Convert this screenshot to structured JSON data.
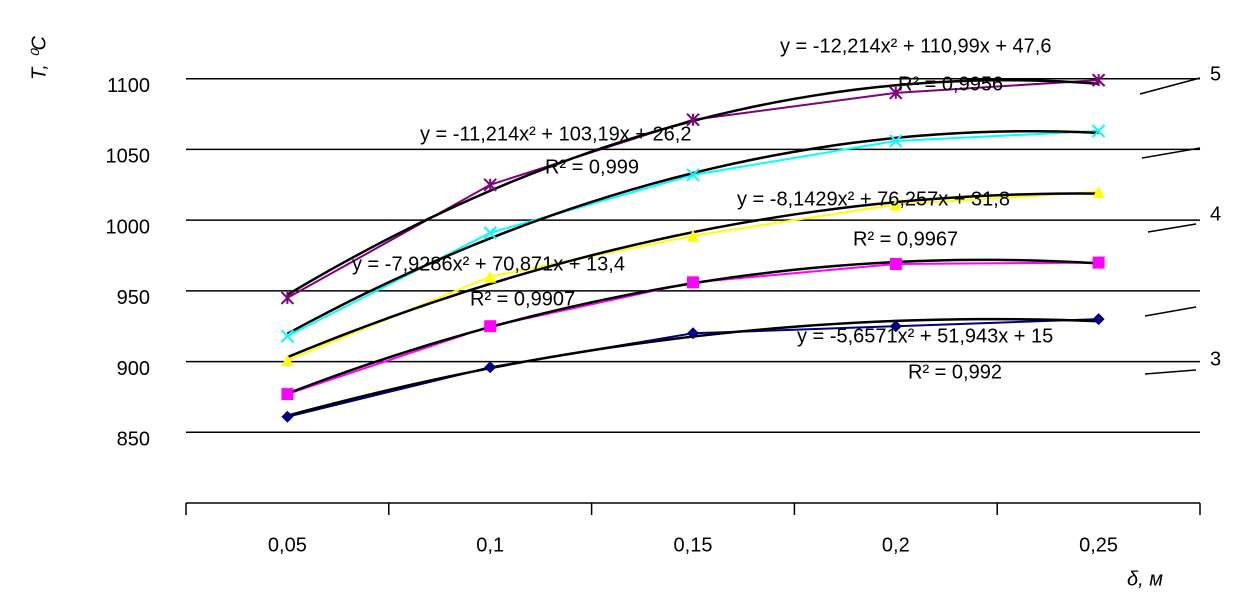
{
  "chart_data": {
    "type": "line",
    "y_label": "T, ⁰C",
    "x_label": "δ, м",
    "categories": [
      "0,05",
      "0,1",
      "0,15",
      "0,2",
      "0,25"
    ],
    "ylim": [
      800,
      1150
    ],
    "yticks": [
      850,
      900,
      950,
      1000,
      1050,
      1100
    ],
    "grid": true,
    "trendline": "polynomial",
    "series": [
      {
        "color": "#000080",
        "marker": "diamond",
        "values": [
          861,
          896,
          920,
          925,
          930
        ]
      },
      {
        "color": "#ff00ff",
        "marker": "square",
        "values": [
          877,
          925,
          956,
          969,
          970
        ]
      },
      {
        "color": "#ffff00",
        "marker": "triangle",
        "values": [
          901,
          960,
          989,
          1011,
          1020
        ]
      },
      {
        "color": "#00ffff",
        "marker": "cross",
        "values": [
          918,
          991,
          1032,
          1056,
          1063
        ]
      },
      {
        "color": "#800080",
        "marker": "star",
        "values": [
          945,
          1025,
          1071,
          1090,
          1099
        ]
      }
    ],
    "annotations": [
      "y = -12,214x² + 110,99x + 47,6",
      "R² = 0,9956",
      "y = -11,214x² + 103,19x + 26,2",
      "R² = 0,999",
      "y = -8,1429x² + 76,257x + 31,8",
      "R² = 0,9967",
      "y = -7,9286x² + 70,871x + 13,4",
      "R² = 0,9907",
      "y = -5,6571x² + 51,943x + 15",
      "R² = 0,992",
      "5",
      "4",
      "3"
    ]
  }
}
